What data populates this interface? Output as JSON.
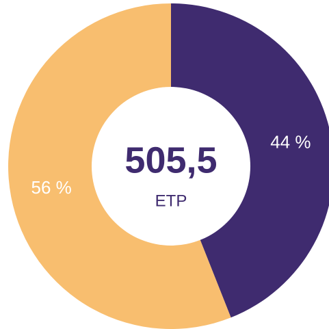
{
  "chart_data": {
    "type": "donut",
    "values": [
      44,
      56
    ],
    "value_labels": [
      "44 %",
      "56 %"
    ],
    "colors": [
      "#3f2b6f",
      "#f8be6f"
    ],
    "center_value": "505,5",
    "center_label": "ETP"
  }
}
